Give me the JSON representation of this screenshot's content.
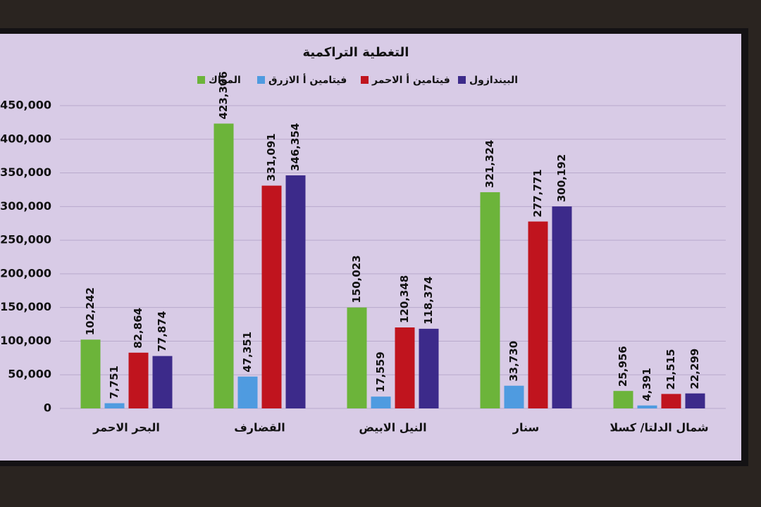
{
  "chart_data": {
    "type": "bar",
    "title": "التغطية التراكمية",
    "categories": [
      "البحر الاحمر",
      "القضارف",
      "النيل الابيض",
      "سنار",
      "شمال الدلتا/ كسلا"
    ],
    "series": [
      {
        "name": "المواك",
        "color": "#6cb43a",
        "values": [
          102242,
          423306,
          150023,
          321324,
          25956
        ],
        "value_labels": [
          "102,242",
          "423,306",
          "150,023",
          "321,324",
          "25,956"
        ]
      },
      {
        "name": "فيتامين أ الازرق",
        "color": "#4f9be0",
        "values": [
          7751,
          47351,
          17559,
          33730,
          4391
        ],
        "value_labels": [
          "7,751",
          "47,351",
          "17,559",
          "33,730",
          "4,391"
        ]
      },
      {
        "name": "فيتامين أ الاحمر",
        "color": "#c0141e",
        "values": [
          82864,
          331091,
          120348,
          277771,
          21515
        ],
        "value_labels": [
          "82,864",
          "331,091",
          "120,348",
          "277,771",
          "21,515"
        ]
      },
      {
        "name": "البيندازول",
        "color": "#3c2a8a",
        "values": [
          77874,
          346354,
          118374,
          300192,
          22299
        ],
        "value_labels": [
          "77,874",
          "346,354",
          "118,374",
          "300,192",
          "22,299"
        ]
      }
    ],
    "ylim": [
      0,
      450000
    ],
    "yticks": [
      0,
      {
        "value": 50000,
        "label": "50,000"
      },
      {
        "value": 100000,
        "label": "100,000"
      },
      {
        "value": 150000,
        "label": "150,000"
      },
      {
        "value": 200000,
        "label": "200,000"
      },
      {
        "value": 250000,
        "label": "250,000"
      },
      {
        "value": 300000,
        "label": "300,000"
      },
      {
        "value": 350000,
        "label": "350,000"
      },
      {
        "value": 400000,
        "label": "400,000"
      },
      {
        "value": 450000,
        "label": "450,000"
      }
    ],
    "grid": true
  }
}
